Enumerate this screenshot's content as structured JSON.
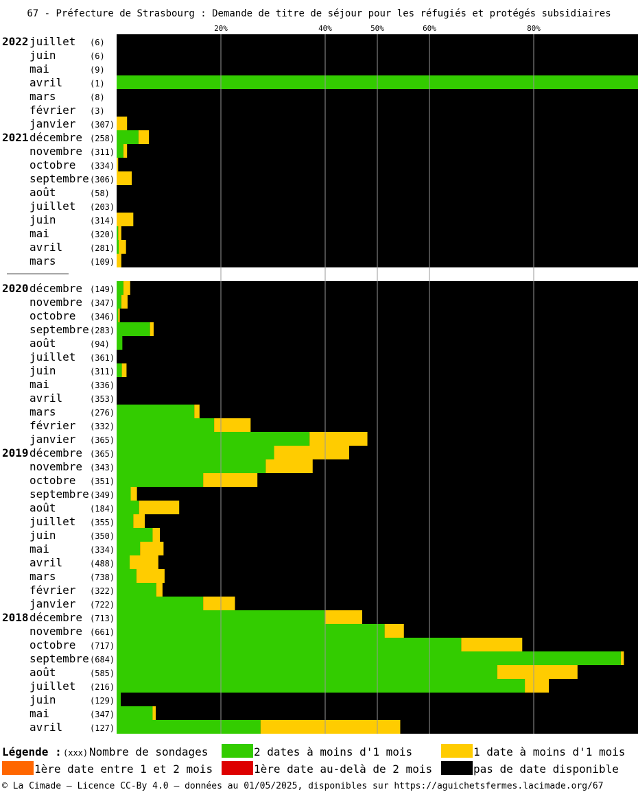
{
  "chart_data": {
    "type": "bar",
    "orientation": "horizontal",
    "stacked": true,
    "title": "67 - Préfecture de Strasbourg : Demande de titre de séjour pour les réfugiés et protégés subsidiaires",
    "x_ticks": [
      {
        "value": 20,
        "label": "20%"
      },
      {
        "value": 40,
        "label": "40%"
      },
      {
        "value": 50,
        "label": "50%"
      },
      {
        "value": 60,
        "label": "60%"
      },
      {
        "value": 80,
        "label": "80%"
      }
    ],
    "xlim": [
      0,
      100
    ],
    "grid": true,
    "colors": {
      "green": "#33cc00",
      "yellow": "#ffcc00",
      "orange": "#ff6600",
      "red": "#dd0000",
      "black": "#000000",
      "grid": "#999999"
    },
    "series_keys": [
      "green",
      "yellow",
      "orange",
      "red"
    ],
    "rows": [
      {
        "year": "2022",
        "month": "juillet",
        "count": "(6)",
        "green": 0,
        "yellow": 0,
        "orange": 0,
        "red": 0
      },
      {
        "year": "",
        "month": "juin",
        "count": "(6)",
        "green": 0,
        "yellow": 0,
        "orange": 0,
        "red": 0
      },
      {
        "year": "",
        "month": "mai",
        "count": "(9)",
        "green": 0,
        "yellow": 0,
        "orange": 0,
        "red": 0
      },
      {
        "year": "",
        "month": "avril",
        "count": "(1)",
        "green": 100,
        "yellow": 0,
        "orange": 0,
        "red": 0
      },
      {
        "year": "",
        "month": "mars",
        "count": "(8)",
        "green": 0,
        "yellow": 0,
        "orange": 0,
        "red": 0
      },
      {
        "year": "",
        "month": "février",
        "count": "(3)",
        "green": 0,
        "yellow": 0,
        "orange": 0,
        "red": 0
      },
      {
        "year": "",
        "month": "janvier",
        "count": "(307)",
        "green": 0,
        "yellow": 2,
        "orange": 0,
        "red": 0
      },
      {
        "year": "2021",
        "month": "décembre",
        "count": "(258)",
        "green": 4.2,
        "yellow": 2,
        "orange": 0,
        "red": 0
      },
      {
        "year": "",
        "month": "novembre",
        "count": "(311)",
        "green": 1.3,
        "yellow": 0.7,
        "orange": 0,
        "red": 0
      },
      {
        "year": "",
        "month": "octobre",
        "count": "(334)",
        "green": 0,
        "yellow": 0.3,
        "orange": 0,
        "red": 0
      },
      {
        "year": "",
        "month": "septembre",
        "count": "(306)",
        "green": 0,
        "yellow": 2.9,
        "orange": 0,
        "red": 0
      },
      {
        "year": "",
        "month": "août",
        "count": "(58)",
        "green": 0,
        "yellow": 0,
        "orange": 0,
        "red": 0
      },
      {
        "year": "",
        "month": "juillet",
        "count": "(203)",
        "green": 0,
        "yellow": 0,
        "orange": 0,
        "red": 0
      },
      {
        "year": "",
        "month": "juin",
        "count": "(314)",
        "green": 0,
        "yellow": 3.2,
        "orange": 0,
        "red": 0
      },
      {
        "year": "",
        "month": "mai",
        "count": "(320)",
        "green": 0.3,
        "yellow": 0.6,
        "orange": 0,
        "red": 0
      },
      {
        "year": "",
        "month": "avril",
        "count": "(281)",
        "green": 0.4,
        "yellow": 1.4,
        "orange": 0,
        "red": 0
      },
      {
        "year": "",
        "month": "mars",
        "count": "(109)",
        "green": 0,
        "yellow": 0.9,
        "orange": 0,
        "red": 0
      },
      {
        "gap": true
      },
      {
        "year": "2020",
        "month": "décembre",
        "count": "(149)",
        "green": 1.3,
        "yellow": 1.3,
        "orange": 0,
        "red": 0
      },
      {
        "year": "",
        "month": "novembre",
        "count": "(347)",
        "green": 0.9,
        "yellow": 1.2,
        "orange": 0,
        "red": 0
      },
      {
        "year": "",
        "month": "octobre",
        "count": "(346)",
        "green": 0.3,
        "yellow": 0.3,
        "orange": 0,
        "red": 0
      },
      {
        "year": "",
        "month": "septembre",
        "count": "(283)",
        "green": 6.4,
        "yellow": 0.7,
        "orange": 0,
        "red": 0
      },
      {
        "year": "",
        "month": "août",
        "count": "(94)",
        "green": 1.1,
        "yellow": 0,
        "orange": 0,
        "red": 0
      },
      {
        "year": "",
        "month": "juillet",
        "count": "(361)",
        "green": 0,
        "yellow": 0,
        "orange": 0,
        "red": 0
      },
      {
        "year": "",
        "month": "juin",
        "count": "(311)",
        "green": 1,
        "yellow": 0.9,
        "orange": 0,
        "red": 0
      },
      {
        "year": "",
        "month": "mai",
        "count": "(336)",
        "green": 0,
        "yellow": 0,
        "orange": 0,
        "red": 0
      },
      {
        "year": "",
        "month": "avril",
        "count": "(353)",
        "green": 0,
        "yellow": 0,
        "orange": 0,
        "red": 0
      },
      {
        "year": "",
        "month": "mars",
        "count": "(276)",
        "green": 14.9,
        "yellow": 1,
        "orange": 0,
        "red": 0
      },
      {
        "year": "",
        "month": "février",
        "count": "(332)",
        "green": 18.7,
        "yellow": 7,
        "orange": 0,
        "red": 0
      },
      {
        "year": "",
        "month": "janvier",
        "count": "(365)",
        "green": 37,
        "yellow": 11.1,
        "orange": 0,
        "red": 0
      },
      {
        "year": "2019",
        "month": "décembre",
        "count": "(365)",
        "green": 30.2,
        "yellow": 14.4,
        "orange": 0,
        "red": 0
      },
      {
        "year": "",
        "month": "novembre",
        "count": "(343)",
        "green": 28.6,
        "yellow": 9,
        "orange": 0,
        "red": 0
      },
      {
        "year": "",
        "month": "octobre",
        "count": "(351)",
        "green": 16.6,
        "yellow": 10.4,
        "orange": 0,
        "red": 0
      },
      {
        "year": "",
        "month": "septembre",
        "count": "(349)",
        "green": 2.7,
        "yellow": 1.2,
        "orange": 0,
        "red": 0
      },
      {
        "year": "",
        "month": "août",
        "count": "(184)",
        "green": 4.3,
        "yellow": 7.7,
        "orange": 0,
        "red": 0
      },
      {
        "year": "",
        "month": "juillet",
        "count": "(355)",
        "green": 3.2,
        "yellow": 2.2,
        "orange": 0,
        "red": 0
      },
      {
        "year": "",
        "month": "juin",
        "count": "(350)",
        "green": 6.9,
        "yellow": 1.4,
        "orange": 0,
        "red": 0
      },
      {
        "year": "",
        "month": "mai",
        "count": "(334)",
        "green": 4.5,
        "yellow": 4.5,
        "orange": 0,
        "red": 0
      },
      {
        "year": "",
        "month": "avril",
        "count": "(488)",
        "green": 2.5,
        "yellow": 5.5,
        "orange": 0,
        "red": 0
      },
      {
        "year": "",
        "month": "mars",
        "count": "(738)",
        "green": 3.8,
        "yellow": 5.4,
        "orange": 0,
        "red": 0
      },
      {
        "year": "",
        "month": "février",
        "count": "(322)",
        "green": 7.6,
        "yellow": 1.2,
        "orange": 0,
        "red": 0
      },
      {
        "year": "",
        "month": "janvier",
        "count": "(722)",
        "green": 16.6,
        "yellow": 6.1,
        "orange": 0,
        "red": 0
      },
      {
        "year": "2018",
        "month": "décembre",
        "count": "(713)",
        "green": 39.9,
        "yellow": 7.2,
        "orange": 0,
        "red": 0
      },
      {
        "year": "",
        "month": "novembre",
        "count": "(661)",
        "green": 51.4,
        "yellow": 3.7,
        "orange": 0,
        "red": 0
      },
      {
        "year": "",
        "month": "octobre",
        "count": "(717)",
        "green": 66.1,
        "yellow": 11.7,
        "orange": 0,
        "red": 0
      },
      {
        "year": "",
        "month": "septembre",
        "count": "(684)",
        "green": 96.7,
        "yellow": 0.6,
        "orange": 0,
        "red": 0
      },
      {
        "year": "",
        "month": "août",
        "count": "(585)",
        "green": 73,
        "yellow": 15.4,
        "orange": 0,
        "red": 0
      },
      {
        "year": "",
        "month": "juillet",
        "count": "(216)",
        "green": 78.3,
        "yellow": 4.6,
        "orange": 0,
        "red": 0
      },
      {
        "year": "",
        "month": "juin",
        "count": "(129)",
        "green": 0.8,
        "yellow": 0,
        "orange": 0,
        "red": 0
      },
      {
        "year": "",
        "month": "mai",
        "count": "(347)",
        "green": 6.9,
        "yellow": 0.6,
        "orange": 0,
        "red": 0
      },
      {
        "year": "",
        "month": "avril",
        "count": "(127)",
        "green": 27.6,
        "yellow": 26.8,
        "orange": 0,
        "red": 0
      }
    ],
    "legend": {
      "title": "Légende :",
      "count_key": "(xxx)",
      "count_label": "Nombre de sondages",
      "items": [
        {
          "key": "green",
          "label": "2 dates à moins d'1 mois"
        },
        {
          "key": "yellow",
          "label": "1 date à moins d'1 mois"
        },
        {
          "key": "orange",
          "label": "1ère date entre 1 et 2 mois"
        },
        {
          "key": "red",
          "label": "1ère date au-delà de 2 mois"
        },
        {
          "key": "black",
          "label": "pas de date disponible"
        }
      ]
    },
    "footer": "© La Cimade – Licence CC-By 4.0 – données au 01/05/2025, disponibles sur https://aguichetsfermes.lacimade.org/67"
  }
}
